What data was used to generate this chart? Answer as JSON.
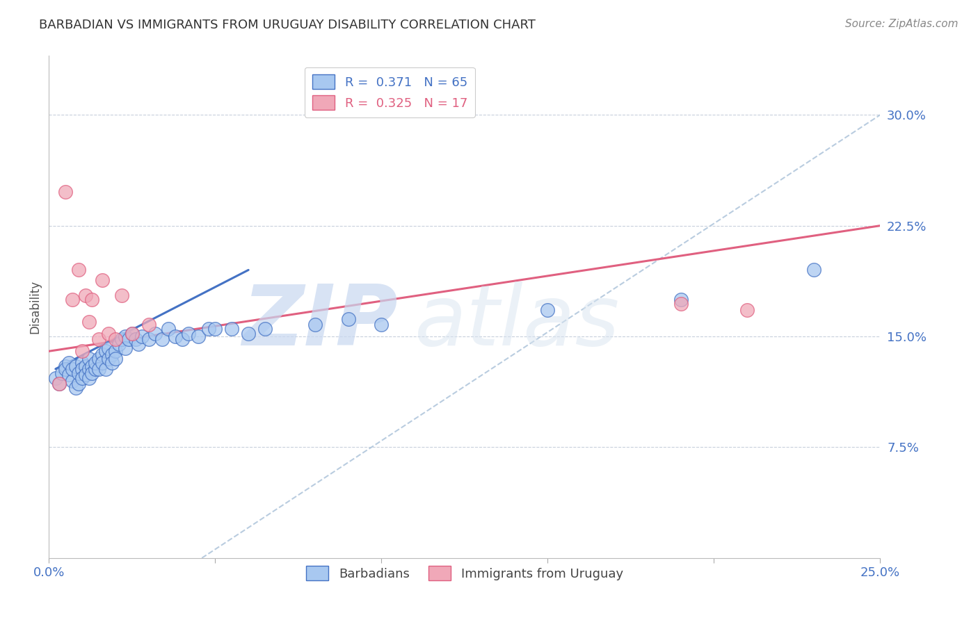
{
  "title": "BARBADIAN VS IMMIGRANTS FROM URUGUAY DISABILITY CORRELATION CHART",
  "source": "Source: ZipAtlas.com",
  "ylabel": "Disability",
  "xlim": [
    0.0,
    0.25
  ],
  "ylim": [
    0.0,
    0.34
  ],
  "xticks": [
    0.0,
    0.05,
    0.1,
    0.15,
    0.2,
    0.25
  ],
  "xticklabels_show": [
    "0.0%",
    "25.0%"
  ],
  "ytick_positions": [
    0.075,
    0.15,
    0.225,
    0.3
  ],
  "ytick_labels": [
    "7.5%",
    "15.0%",
    "22.5%",
    "30.0%"
  ],
  "blue_color": "#A8C8F0",
  "pink_color": "#F0A8B8",
  "blue_line_color": "#4472C4",
  "pink_line_color": "#E06080",
  "ref_line_color": "#A8C0D8",
  "background_color": "#FFFFFF",
  "grid_color": "#C8D0DC",
  "blue_scatter_x": [
    0.002,
    0.003,
    0.004,
    0.005,
    0.005,
    0.006,
    0.006,
    0.007,
    0.007,
    0.008,
    0.008,
    0.009,
    0.009,
    0.01,
    0.01,
    0.01,
    0.011,
    0.011,
    0.012,
    0.012,
    0.012,
    0.013,
    0.013,
    0.014,
    0.014,
    0.015,
    0.015,
    0.016,
    0.016,
    0.017,
    0.017,
    0.018,
    0.018,
    0.019,
    0.019,
    0.02,
    0.02,
    0.021,
    0.022,
    0.023,
    0.023,
    0.024,
    0.025,
    0.026,
    0.027,
    0.028,
    0.03,
    0.032,
    0.034,
    0.036,
    0.038,
    0.04,
    0.042,
    0.045,
    0.048,
    0.05,
    0.055,
    0.06,
    0.065,
    0.08,
    0.09,
    0.1,
    0.15,
    0.19,
    0.23
  ],
  "blue_scatter_y": [
    0.122,
    0.118,
    0.125,
    0.13,
    0.128,
    0.124,
    0.132,
    0.12,
    0.128,
    0.115,
    0.13,
    0.118,
    0.125,
    0.132,
    0.128,
    0.122,
    0.13,
    0.124,
    0.128,
    0.135,
    0.122,
    0.13,
    0.125,
    0.128,
    0.132,
    0.135,
    0.128,
    0.138,
    0.132,
    0.14,
    0.128,
    0.135,
    0.142,
    0.138,
    0.132,
    0.14,
    0.135,
    0.145,
    0.148,
    0.15,
    0.142,
    0.148,
    0.152,
    0.148,
    0.145,
    0.15,
    0.148,
    0.152,
    0.148,
    0.155,
    0.15,
    0.148,
    0.152,
    0.15,
    0.155,
    0.155,
    0.155,
    0.152,
    0.155,
    0.158,
    0.162,
    0.158,
    0.168,
    0.175,
    0.195
  ],
  "pink_scatter_x": [
    0.003,
    0.005,
    0.007,
    0.009,
    0.01,
    0.011,
    0.012,
    0.013,
    0.015,
    0.016,
    0.018,
    0.02,
    0.022,
    0.025,
    0.03,
    0.19,
    0.21
  ],
  "pink_scatter_y": [
    0.118,
    0.248,
    0.175,
    0.195,
    0.14,
    0.178,
    0.16,
    0.175,
    0.148,
    0.188,
    0.152,
    0.148,
    0.178,
    0.152,
    0.158,
    0.172,
    0.168
  ],
  "blue_trend_x": [
    0.002,
    0.06
  ],
  "blue_trend_y": [
    0.128,
    0.195
  ],
  "pink_trend_x": [
    0.0,
    0.25
  ],
  "pink_trend_y": [
    0.14,
    0.225
  ],
  "ref_line_x": [
    0.046,
    0.25
  ],
  "ref_line_y": [
    0.0,
    0.3
  ],
  "watermark_zip": "ZIP",
  "watermark_atlas": "atlas",
  "legend_blue_label": "R =  0.371   N = 65",
  "legend_pink_label": "R =  0.325   N = 17",
  "bottom_legend_blue": "Barbadians",
  "bottom_legend_pink": "Immigrants from Uruguay"
}
